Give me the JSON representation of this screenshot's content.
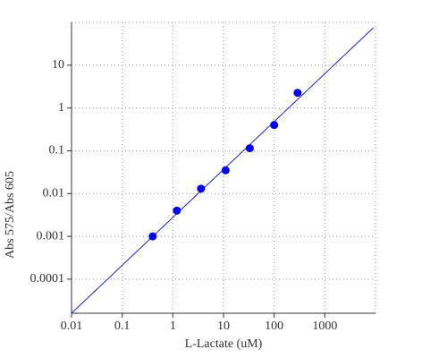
{
  "chart_data": {
    "type": "scatter",
    "xlabel": "L-Lactate (uM)",
    "ylabel": "Abs 575/Abs 605",
    "xscale": "log",
    "yscale": "log",
    "grid": true,
    "x": [
      0.4,
      1.2,
      3.6,
      11,
      33,
      100,
      290
    ],
    "values": [
      0.001,
      0.004,
      0.013,
      0.035,
      0.115,
      0.4,
      2.26
    ],
    "color": "#0000ee",
    "line": {
      "x": [
        0.01,
        9100
      ],
      "values": [
        1.6e-05,
        75
      ],
      "color": "#2222cc"
    },
    "xlim": [
      0.01,
      10000
    ],
    "ylim": [
      1.6e-05,
      100
    ],
    "xticks": [
      0.01,
      0.1,
      1,
      10,
      100,
      1000
    ],
    "yticks": [
      0.0001,
      0.001,
      0.01,
      0.1,
      1,
      10
    ]
  }
}
